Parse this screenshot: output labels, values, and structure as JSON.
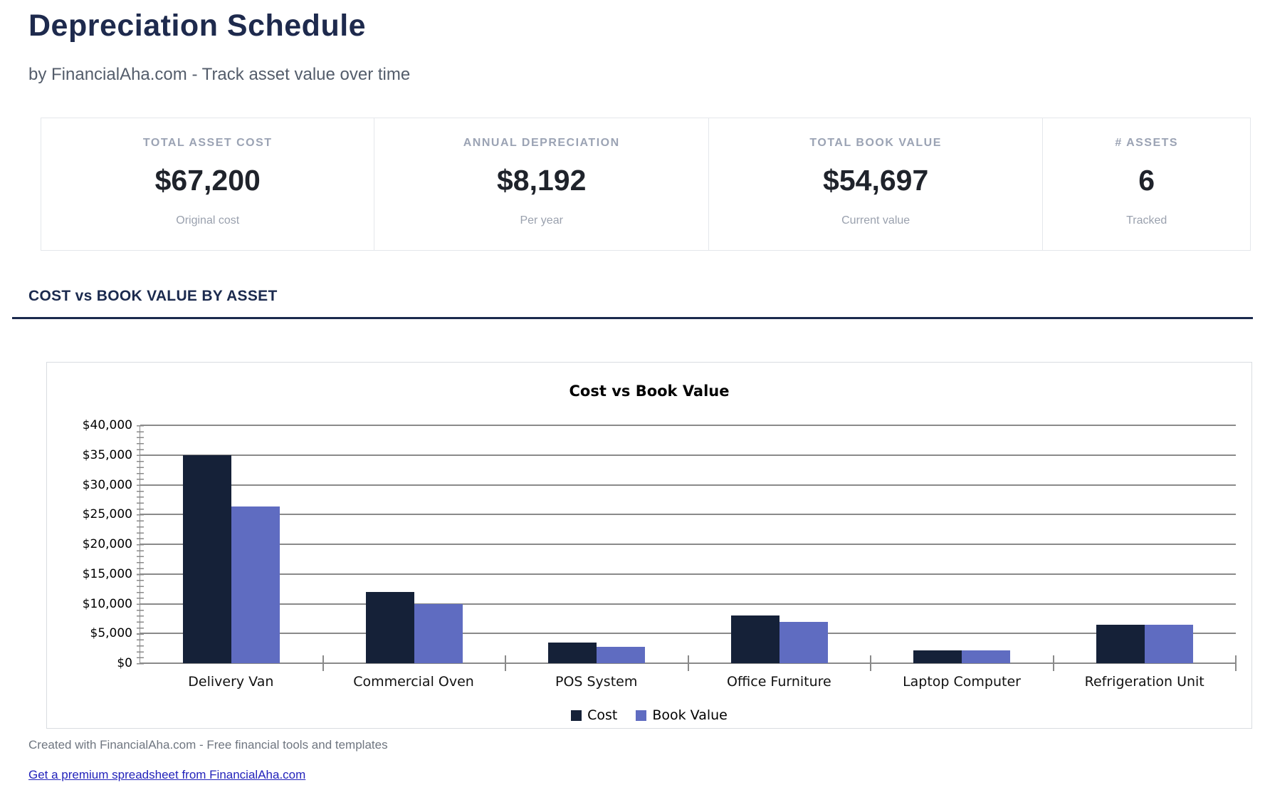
{
  "page": {
    "title": "Depreciation Schedule",
    "subtitle": "by FinancialAha.com - Track asset value over time"
  },
  "stats": [
    {
      "label": "TOTAL ASSET COST",
      "value": "$67,200",
      "sublabel": "Original cost"
    },
    {
      "label": "ANNUAL DEPRECIATION",
      "value": "$8,192",
      "sublabel": "Per year"
    },
    {
      "label": "TOTAL BOOK VALUE",
      "value": "$54,697",
      "sublabel": "Current value"
    },
    {
      "label": "# ASSETS",
      "value": "6",
      "sublabel": "Tracked"
    }
  ],
  "section_title": "COST vs BOOK VALUE BY ASSET",
  "chart_data": {
    "type": "bar",
    "title": "Cost vs Book Value",
    "categories": [
      "Delivery Van",
      "Commercial Oven",
      "POS System",
      "Office Furniture",
      "Laptop Computer",
      "Refrigeration Unit"
    ],
    "series": [
      {
        "name": "Cost",
        "color": "#152138",
        "values": [
          35000,
          12000,
          3500,
          8000,
          2200,
          6500
        ]
      },
      {
        "name": "Book Value",
        "color": "#5f6cc1",
        "values": [
          26300,
          9900,
          2800,
          7000,
          2200,
          6500
        ]
      }
    ],
    "ylim": [
      0,
      40000
    ],
    "yticks": [
      {
        "value": 40000,
        "label": "$40,000"
      },
      {
        "value": 35000,
        "label": "$35,000"
      },
      {
        "value": 30000,
        "label": "$30,000"
      },
      {
        "value": 25000,
        "label": "$25,000"
      },
      {
        "value": 20000,
        "label": "$20,000"
      },
      {
        "value": 15000,
        "label": "$15,000"
      },
      {
        "value": 10000,
        "label": "$10,000"
      },
      {
        "value": 5000,
        "label": "$5,000"
      },
      {
        "value": 0,
        "label": "$0"
      }
    ],
    "grid": true,
    "legend_position": "bottom"
  },
  "footer": {
    "credit": "Created with FinancialAha.com - Free financial tools and templates",
    "link_label": "Get a premium spreadsheet from FinancialAha.com"
  },
  "colors": {
    "accent_navy": "#1b2a4e",
    "bar_cost": "#152138",
    "bar_book": "#5f6cc1",
    "gridline": "#8a8a8a",
    "link": "#2323bb"
  }
}
